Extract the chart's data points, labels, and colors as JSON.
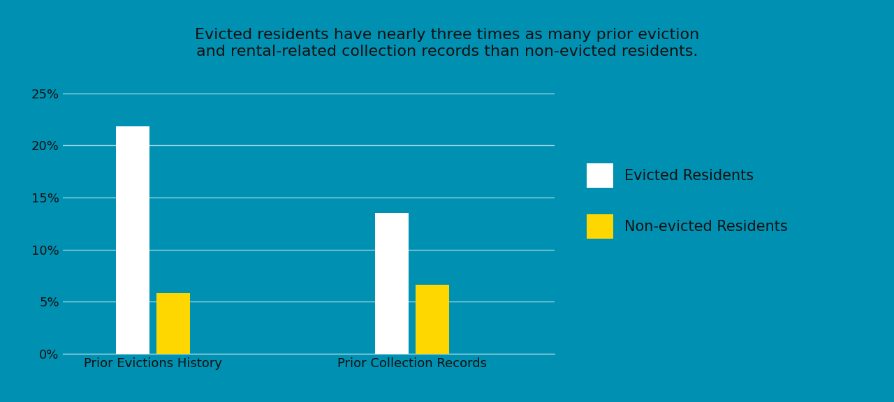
{
  "title": "Evicted residents have nearly three times as many prior eviction\nand rental-related collection records than non-evicted residents.",
  "categories": [
    "Prior Evictions History",
    "Prior Collection Records"
  ],
  "evicted_values": [
    0.218,
    0.135
  ],
  "nonevicted_values": [
    0.058,
    0.066
  ],
  "evicted_color": "#FFFFFF",
  "nonevicted_color": "#FFD700",
  "background_color": "#0090B2",
  "title_color": "#111111",
  "tick_label_color": "#111111",
  "grid_color": "#FFFFFF",
  "bar_width": 0.13,
  "ylim": [
    0,
    0.27
  ],
  "yticks": [
    0.0,
    0.05,
    0.1,
    0.15,
    0.2,
    0.25
  ],
  "ytick_labels": [
    "0%",
    "5%",
    "10%",
    "15%",
    "20%",
    "25%"
  ],
  "legend_labels": [
    "Evicted Residents",
    "Non-evicted Residents"
  ],
  "title_fontsize": 16,
  "tick_fontsize": 13,
  "legend_fontsize": 15,
  "xlabel_fontsize": 13,
  "grid_alpha": 0.6,
  "grid_linewidth": 1.0
}
